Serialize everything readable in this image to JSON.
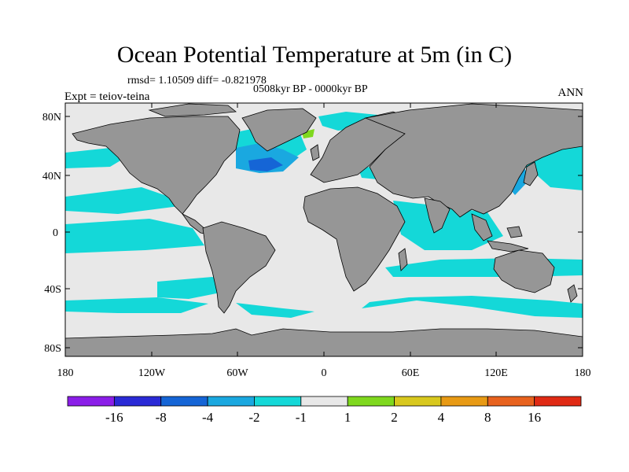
{
  "title": "Ocean Potential Temperature at 5m (in C)",
  "stats": "rmsd= 1.10509  diff= -0.821978",
  "period": "0508kyr BP - 0000kyr BP",
  "experiment": "Expt = teiov-teina",
  "season": "ANN",
  "lat_ticks": [
    "80N",
    "40N",
    "0",
    "40S",
    "80S"
  ],
  "lon_ticks": [
    "180",
    "120W",
    "60W",
    "0",
    "60E",
    "120E",
    "180"
  ],
  "colorbar": {
    "colors": [
      "#8b1ee8",
      "#2a2ad6",
      "#1565d6",
      "#1aa8e0",
      "#14d8d8",
      "#e8e8e8",
      "#7fd81e",
      "#d8c81e",
      "#e89a14",
      "#e8621e",
      "#e02a14"
    ],
    "labels": [
      "-16",
      "-8",
      "-4",
      "-2",
      "-1",
      "1",
      "2",
      "4",
      "8",
      "16"
    ]
  },
  "colors": {
    "land": "#969696",
    "ocean_neutral": "#e8e8e8",
    "cool": "#14d8d8",
    "cooler": "#1aa8e0",
    "coolest": "#1565d6",
    "warm": "#7fd81e"
  }
}
